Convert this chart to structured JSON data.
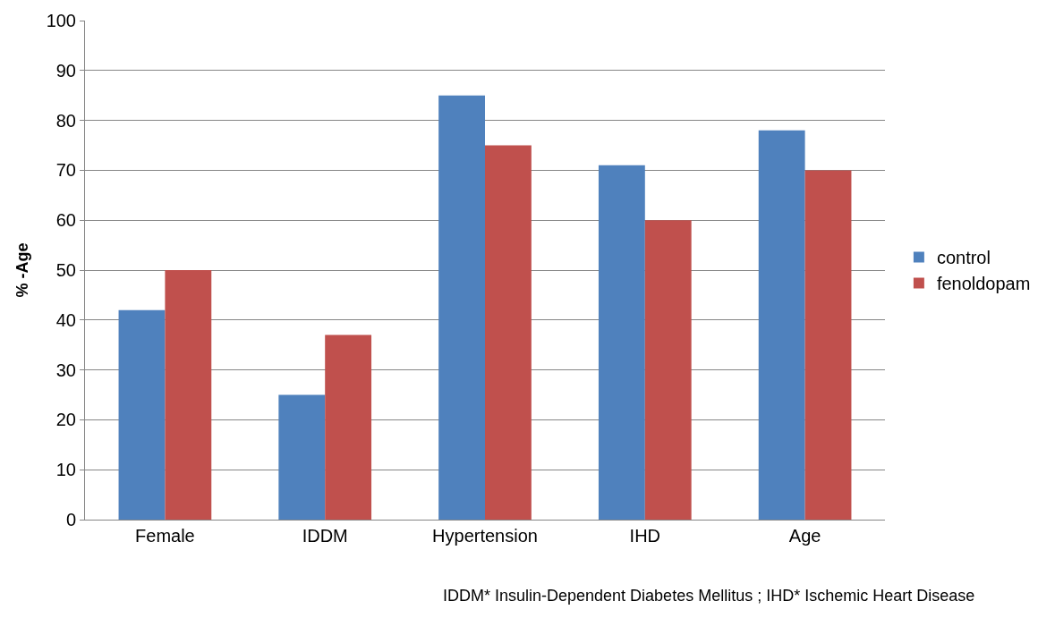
{
  "chart_data": {
    "type": "bar",
    "ylabel": "% -Age",
    "categories": [
      "Female",
      "IDDM",
      "Hypertension",
      "IHD",
      "Age"
    ],
    "series": [
      {
        "name": "control",
        "color": "#4f81bd",
        "values": [
          42,
          25,
          85,
          71,
          78
        ]
      },
      {
        "name": "fenoldopam",
        "color": "#c0504d",
        "values": [
          50,
          37,
          75,
          60,
          70
        ]
      }
    ],
    "ylim": [
      0,
      100
    ],
    "yticks": [
      0,
      10,
      20,
      30,
      40,
      50,
      60,
      70,
      80,
      90,
      100
    ],
    "grid": "y",
    "legend": "right",
    "annotations": [
      "IDDM* Insulin-Dependent Diabetes Mellitus ; IHD* Ischemic Heart Disease"
    ]
  }
}
